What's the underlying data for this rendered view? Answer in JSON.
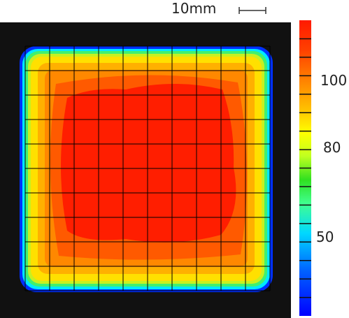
{
  "scale_bar": {
    "label": "10mm"
  },
  "colorbar": {
    "stops": [
      "#0000ff",
      "#0060ff",
      "#00d8ff",
      "#40ff90",
      "#30e020",
      "#c0ff20",
      "#ffff00",
      "#ffc000",
      "#ff8000",
      "#ff4000",
      "#ff1a00"
    ],
    "labels": [
      "100",
      "80",
      "50"
    ]
  },
  "heatmap": {
    "colors": {
      "background": "#111111",
      "outer_dark": "#1a1a1a",
      "blue": "#0030ff",
      "cyan": "#00e8ff",
      "green": "#30e040",
      "yellow_green": "#c8f020",
      "yellow": "#ffe000",
      "light_orange": "#ffb000",
      "orange": "#ff8800",
      "dark_orange": "#ff5a00",
      "red": "#ff1e00",
      "grid": "#000000"
    }
  }
}
